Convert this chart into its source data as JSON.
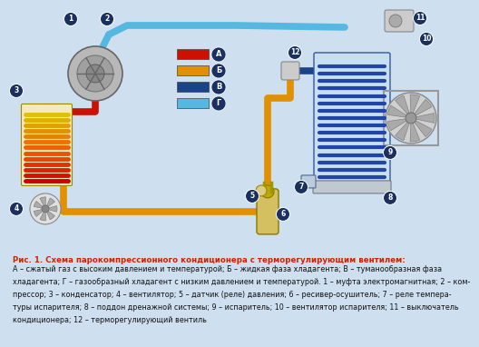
{
  "bg_color": "#cee0f0",
  "caption_bg": "#e8e8e8",
  "title": "Рис. 1. Схема парокомпрессионного кондиционера с терморегулирующим вентилем:",
  "caption_lines": [
    "А – сжатый газ с высоким давлением и температурой; Б – жидкая фаза хладагента; В – туманообразная фаза",
    "хладагента; Г – газообразный хладагент с низким давлением и температурой. 1 – муфта электромагнитная; 2 – ком-",
    "прессор; 3 – конденсатор; 4 – вентилятор; 5 – датчик (реле) давления; 6 – ресивер-осушитель; 7 – реле темпера-",
    "туры испарителя; 8 – поддон дренажной системы; 9 – испаритель; 10 – вентилятор испарителя; 11 – выключатель",
    "кондиционера; 12 – терморегулирующий вентиль"
  ],
  "title_color": "#cc2200",
  "caption_color": "#111111",
  "node_color": "#1a3060",
  "col_A": "#cc1100",
  "col_B": "#e09000",
  "col_C": "#1a4488",
  "col_D": "#55b8e0",
  "legend_labels": [
    "А",
    "Б",
    "В",
    "Г"
  ],
  "legend_colors": [
    "#cc1100",
    "#e09000",
    "#1a4488",
    "#55b8e0"
  ]
}
